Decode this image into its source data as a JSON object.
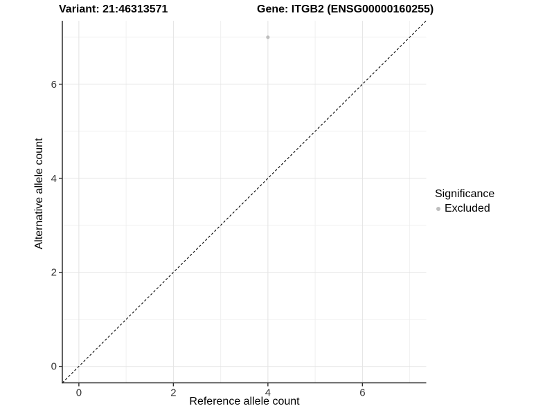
{
  "chart_data": {
    "type": "scatter",
    "titles": {
      "left": "Variant: 21:46313571",
      "right": "Gene: ITGB2 (ENSG00000160255)"
    },
    "xlabel": "Reference allele count",
    "ylabel": "Alternative allele count",
    "xlim": [
      -0.35,
      7.35
    ],
    "ylim": [
      -0.35,
      7.35
    ],
    "x_ticks": [
      0,
      2,
      4,
      6
    ],
    "y_ticks": [
      0,
      2,
      4,
      6
    ],
    "x_minor_ticks": [
      1,
      3,
      5,
      7
    ],
    "y_minor_ticks": [
      1,
      3,
      5,
      7
    ],
    "grid": true,
    "reference_line": {
      "type": "identity",
      "style": "dashed",
      "color": "#000000"
    },
    "series": [
      {
        "name": "Excluded",
        "color": "#bebebe",
        "point_radius": 2.6,
        "points": [
          {
            "x": 4,
            "y": 7
          }
        ]
      }
    ],
    "legend": {
      "title": "Significance",
      "position": "right",
      "items": [
        {
          "label": "Excluded",
          "color": "#bebebe"
        }
      ]
    },
    "colors": {
      "background": "#ffffff",
      "grid_major": "#e3e3e3",
      "grid_minor": "#f0f0f0",
      "axis_line": "#2b2b2b",
      "tick_label": "#333333"
    }
  }
}
